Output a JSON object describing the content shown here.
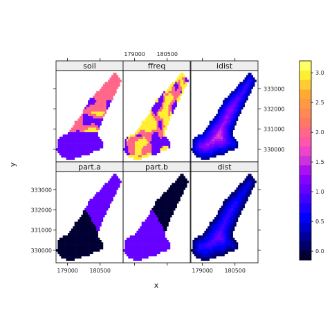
{
  "chart_data": {
    "type": "heatmap",
    "xlabel": "x",
    "ylabel": "y",
    "panels": [
      {
        "name": "soil"
      },
      {
        "name": "ffreq"
      },
      {
        "name": "idist"
      },
      {
        "name": "part.a"
      },
      {
        "name": "part.b"
      },
      {
        "name": "dist"
      }
    ],
    "x_ticks": [
      179000,
      180500
    ],
    "x_tick_labels": [
      "179000",
      "180500"
    ],
    "y_ticks": [
      330000,
      331000,
      332000,
      333000
    ],
    "y_tick_labels": [
      "330000",
      "331000",
      "332000",
      "333000"
    ],
    "xlim": [
      178470,
      181560
    ],
    "ylim": [
      329380,
      333900
    ],
    "colorkey": {
      "ticks": [
        0.0,
        0.5,
        1.0,
        1.5,
        2.0,
        2.5,
        3.0
      ],
      "tick_labels": [
        "0.0",
        "0.5",
        "1.0",
        "1.5",
        "2.0",
        "2.5",
        "3.0"
      ],
      "range": [
        -0.15,
        3.2
      ],
      "colors": [
        "#000033",
        "#000066",
        "#000099",
        "#0000cc",
        "#0000ff",
        "#2200ff",
        "#4400ff",
        "#6600ff",
        "#8800ff",
        "#aa11ee",
        "#cc33dd",
        "#ee44cc",
        "#ff55aa",
        "#ff6688",
        "#ff7766",
        "#ff8855",
        "#ff9944",
        "#ffaa33",
        "#ffcc33",
        "#ffee33",
        "#ffff66"
      ]
    }
  }
}
